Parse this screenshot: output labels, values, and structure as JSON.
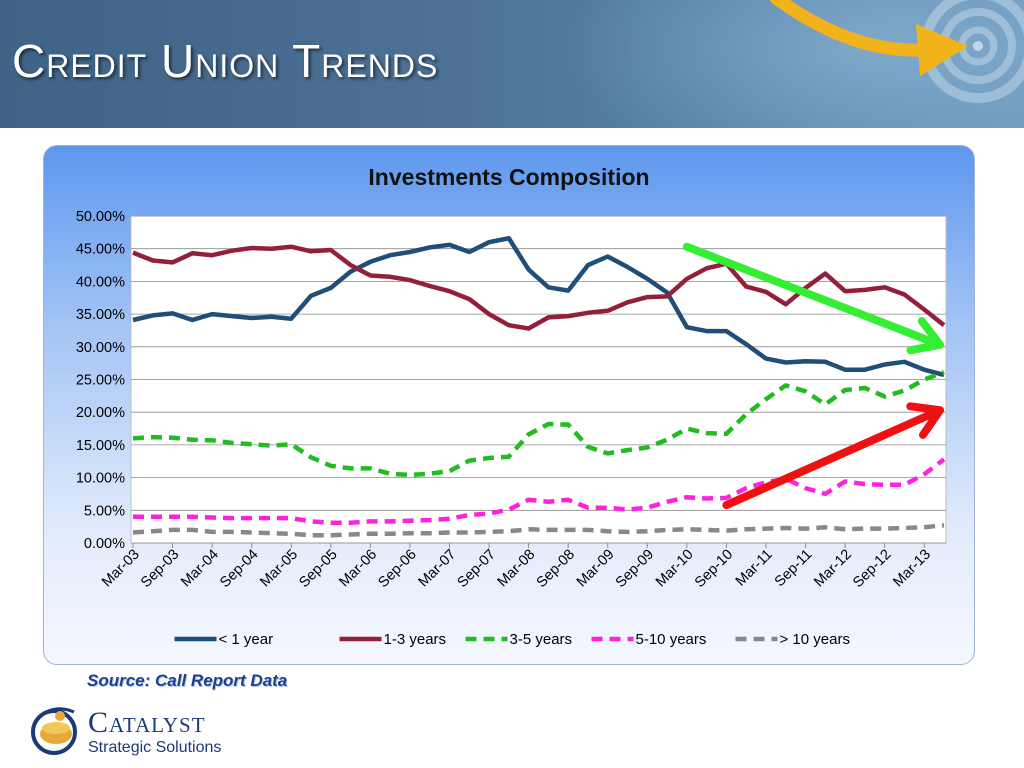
{
  "slide": {
    "title": "Credit Union Trends",
    "source": "Source:  Call Report Data"
  },
  "logo": {
    "name": "Catalyst",
    "tagline": "Strategic Solutions"
  },
  "colors": {
    "header": "#4d7296",
    "accent_arrow_gold": "#f2b21c",
    "trend_arrow_down": "#33ee33",
    "trend_arrow_up": "#ee1111"
  },
  "chart_data": {
    "type": "line",
    "title": "Investments Composition",
    "xlabel": "",
    "ylabel": "",
    "ylim": [
      0,
      0.5
    ],
    "yticks": [
      "0.00%",
      "5.00%",
      "10.00%",
      "15.00%",
      "20.00%",
      "25.00%",
      "30.00%",
      "35.00%",
      "40.00%",
      "45.00%",
      "50.00%"
    ],
    "grid": true,
    "legend_position": "bottom",
    "x": [
      "Mar-03",
      "Jun-03",
      "Sep-03",
      "Dec-03",
      "Mar-04",
      "Jun-04",
      "Sep-04",
      "Dec-04",
      "Mar-05",
      "Jun-05",
      "Sep-05",
      "Dec-05",
      "Mar-06",
      "Jun-06",
      "Sep-06",
      "Dec-06",
      "Mar-07",
      "Jun-07",
      "Sep-07",
      "Dec-07",
      "Mar-08",
      "Jun-08",
      "Sep-08",
      "Dec-08",
      "Mar-09",
      "Jun-09",
      "Sep-09",
      "Dec-09",
      "Mar-10",
      "Jun-10",
      "Sep-10",
      "Dec-10",
      "Mar-11",
      "Jun-11",
      "Sep-11",
      "Dec-11",
      "Mar-12",
      "Jun-12",
      "Sep-12",
      "Dec-12",
      "Mar-13",
      "Jun-13"
    ],
    "x_tick_labels": [
      "Mar-03",
      "Sep-03",
      "Mar-04",
      "Sep-04",
      "Mar-05",
      "Sep-05",
      "Mar-06",
      "Sep-06",
      "Mar-07",
      "Sep-07",
      "Mar-08",
      "Sep-08",
      "Mar-09",
      "Sep-09",
      "Mar-10",
      "Sep-10",
      "Mar-11",
      "Sep-11",
      "Mar-12",
      "Sep-12",
      "Mar-13"
    ],
    "series": [
      {
        "name": "< 1 year",
        "color": "#1f4e79",
        "dash": "solid",
        "values": [
          0.341,
          0.348,
          0.351,
          0.341,
          0.35,
          0.347,
          0.344,
          0.346,
          0.343,
          0.378,
          0.39,
          0.415,
          0.43,
          0.44,
          0.445,
          0.452,
          0.456,
          0.445,
          0.46,
          0.466,
          0.418,
          0.391,
          0.386,
          0.425,
          0.438,
          0.422,
          0.404,
          0.383,
          0.33,
          0.324,
          0.324,
          0.304,
          0.282,
          0.276,
          0.278,
          0.277,
          0.265,
          0.265,
          0.273,
          0.277,
          0.265,
          0.257
        ]
      },
      {
        "name": "1-3 years",
        "color": "#941f3c",
        "dash": "solid",
        "values": [
          0.444,
          0.432,
          0.429,
          0.443,
          0.44,
          0.447,
          0.451,
          0.45,
          0.453,
          0.446,
          0.448,
          0.425,
          0.409,
          0.407,
          0.402,
          0.393,
          0.385,
          0.373,
          0.35,
          0.333,
          0.328,
          0.345,
          0.347,
          0.352,
          0.355,
          0.368,
          0.376,
          0.377,
          0.404,
          0.42,
          0.427,
          0.392,
          0.384,
          0.365,
          0.39,
          0.412,
          0.385,
          0.387,
          0.391,
          0.38,
          0.357,
          0.333
        ]
      },
      {
        "name": "3-5 years",
        "color": "#22bb22",
        "dash": "dashed",
        "values": [
          0.16,
          0.162,
          0.161,
          0.158,
          0.157,
          0.153,
          0.151,
          0.149,
          0.151,
          0.131,
          0.118,
          0.114,
          0.114,
          0.106,
          0.104,
          0.106,
          0.11,
          0.126,
          0.13,
          0.132,
          0.166,
          0.182,
          0.181,
          0.147,
          0.137,
          0.142,
          0.146,
          0.158,
          0.175,
          0.168,
          0.167,
          0.197,
          0.22,
          0.241,
          0.232,
          0.212,
          0.234,
          0.237,
          0.224,
          0.233,
          0.25,
          0.261
        ]
      },
      {
        "name": "5-10 years",
        "color": "#ff22dd",
        "dash": "dashed",
        "values": [
          0.04,
          0.04,
          0.04,
          0.04,
          0.039,
          0.038,
          0.038,
          0.038,
          0.038,
          0.033,
          0.031,
          0.031,
          0.033,
          0.033,
          0.034,
          0.035,
          0.037,
          0.043,
          0.045,
          0.051,
          0.066,
          0.063,
          0.066,
          0.054,
          0.054,
          0.051,
          0.054,
          0.063,
          0.07,
          0.068,
          0.069,
          0.084,
          0.093,
          0.098,
          0.084,
          0.075,
          0.094,
          0.09,
          0.089,
          0.089,
          0.105,
          0.128
        ]
      },
      {
        "name": "> 10 years",
        "color": "#888888",
        "dash": "dashed",
        "values": [
          0.016,
          0.018,
          0.02,
          0.02,
          0.017,
          0.017,
          0.016,
          0.015,
          0.014,
          0.012,
          0.012,
          0.013,
          0.014,
          0.014,
          0.015,
          0.015,
          0.016,
          0.016,
          0.017,
          0.018,
          0.021,
          0.02,
          0.02,
          0.02,
          0.018,
          0.017,
          0.018,
          0.02,
          0.021,
          0.02,
          0.019,
          0.021,
          0.022,
          0.023,
          0.022,
          0.024,
          0.021,
          0.022,
          0.022,
          0.023,
          0.024,
          0.027
        ]
      }
    ],
    "annotations": [
      {
        "kind": "arrow",
        "color": "#33ee33",
        "from": [
          "Mar-10",
          0.453
        ],
        "to": [
          "Jun-13",
          0.303
        ]
      },
      {
        "kind": "arrow",
        "color": "#ee1111",
        "from": [
          "Sep-10",
          0.058
        ],
        "to": [
          "Jun-13",
          0.203
        ]
      }
    ]
  }
}
